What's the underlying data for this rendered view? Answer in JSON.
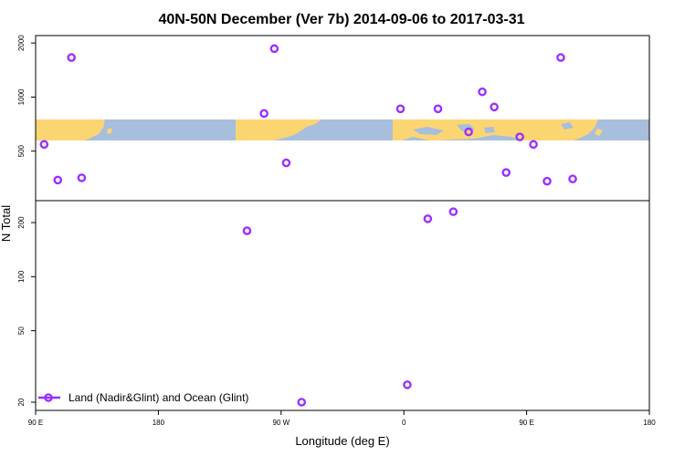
{
  "chart_data": {
    "type": "scatter",
    "title": "40N-50N December (Ver 7b)   2014-09-06 to 2017-03-31",
    "xlabel": "Longitude (deg E)",
    "ylabel": "N Total",
    "xlim": [
      90,
      450
    ],
    "ylim": [
      18,
      2200
    ],
    "y_scale": "log",
    "x_ticks": [
      {
        "value": 90,
        "label": "90 E"
      },
      {
        "value": 162,
        "label": "180"
      },
      {
        "value": 234,
        "label": "90 W"
      },
      {
        "value": 306,
        "label": "0"
      },
      {
        "value": 378,
        "label": "90 E"
      },
      {
        "value": 450,
        "label": "180"
      }
    ],
    "y_ticks": [
      20,
      50,
      100,
      200,
      500,
      1000,
      2000
    ],
    "grid": false,
    "legend_position": "bottom-left",
    "series": [
      {
        "name": "Land (Nadir&Glint) and Ocean (Glint)",
        "color": "#9b30ff",
        "marker": "open-circle",
        "points": [
          {
            "x": 95,
            "y": 545
          },
          {
            "x": 103,
            "y": 345
          },
          {
            "x": 111,
            "y": 1660
          },
          {
            "x": 117,
            "y": 355
          },
          {
            "x": 214,
            "y": 180
          },
          {
            "x": 224,
            "y": 810
          },
          {
            "x": 230,
            "y": 1860
          },
          {
            "x": 237,
            "y": 430
          },
          {
            "x": 246,
            "y": 20
          },
          {
            "x": 304,
            "y": 860
          },
          {
            "x": 308,
            "y": 25
          },
          {
            "x": 320,
            "y": 210
          },
          {
            "x": 326,
            "y": 860
          },
          {
            "x": 335,
            "y": 230
          },
          {
            "x": 344,
            "y": 640
          },
          {
            "x": 352,
            "y": 1070
          },
          {
            "x": 359,
            "y": 880
          },
          {
            "x": 366,
            "y": 380
          },
          {
            "x": 374,
            "y": 600
          },
          {
            "x": 382,
            "y": 545
          },
          {
            "x": 390,
            "y": 340
          },
          {
            "x": 398,
            "y": 1660
          },
          {
            "x": 405,
            "y": 350
          }
        ]
      }
    ]
  },
  "colors": {
    "land": "#fcd573",
    "ocean": "#a7bedc",
    "marker": "#9b30ff"
  }
}
